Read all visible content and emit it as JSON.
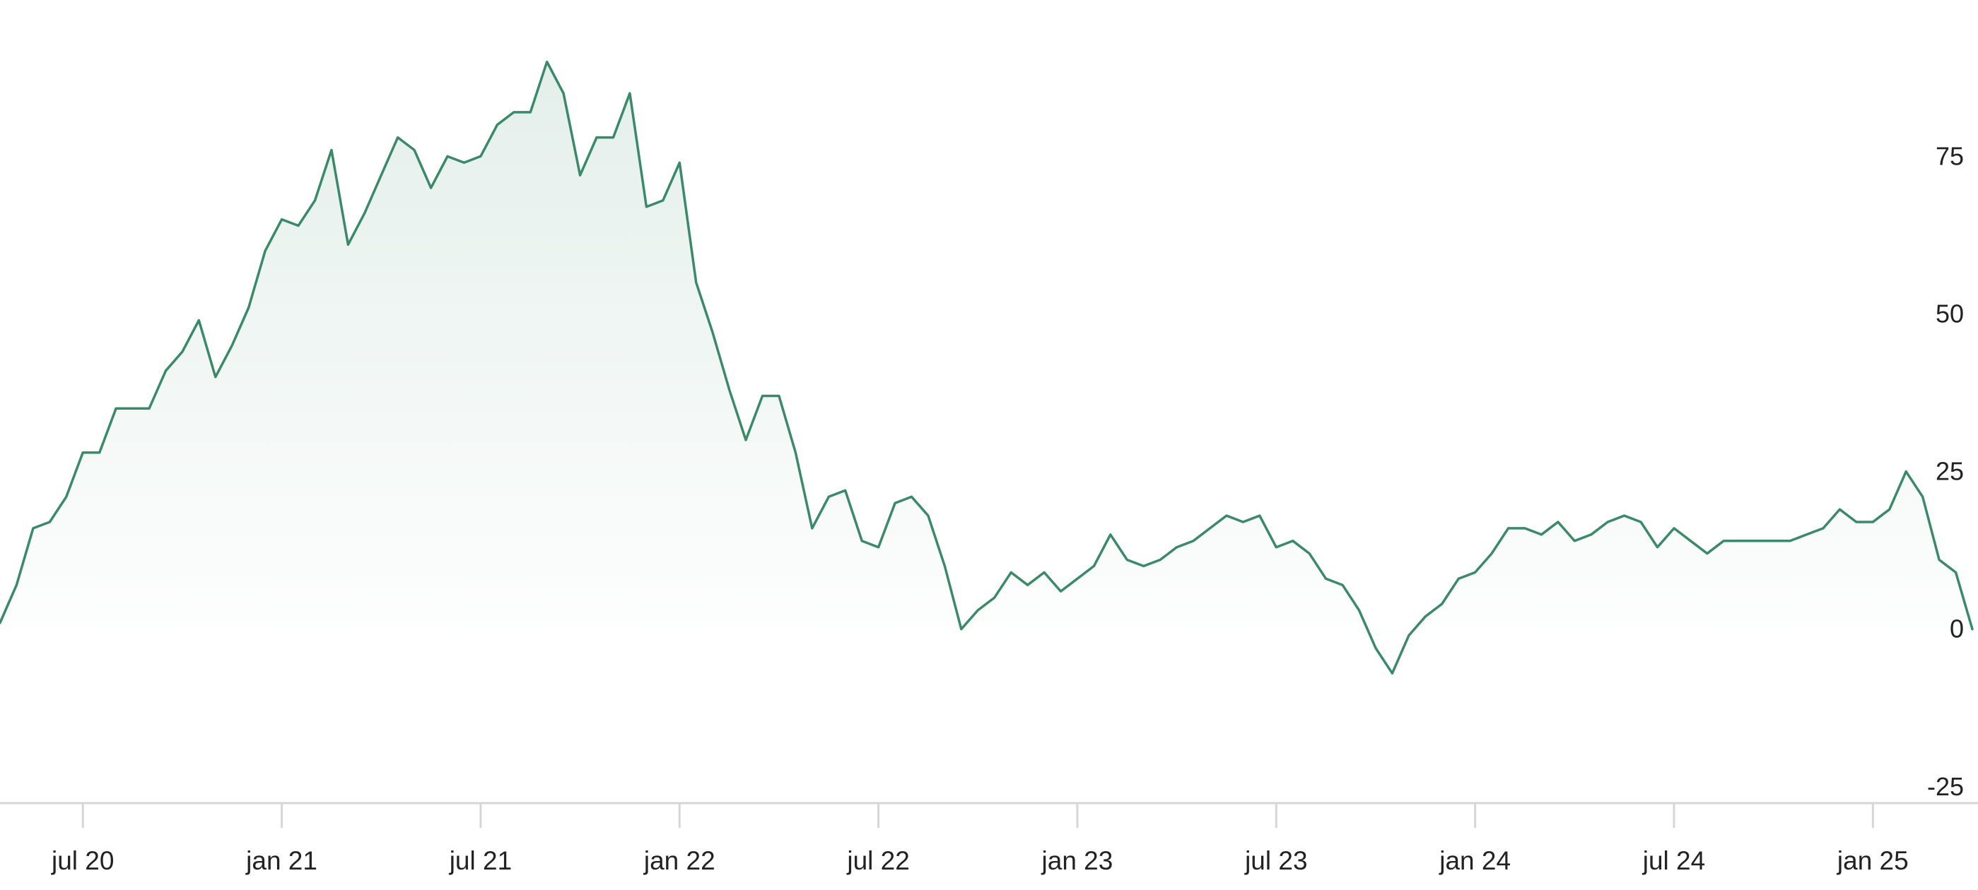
{
  "chart_data": {
    "type": "area",
    "categories": [
      null,
      null,
      null,
      null,
      null,
      "jul 20",
      null,
      null,
      null,
      null,
      null,
      null,
      null,
      null,
      null,
      null,
      null,
      "jan 21",
      null,
      null,
      null,
      null,
      null,
      null,
      null,
      null,
      null,
      null,
      null,
      "jul 21",
      null,
      null,
      null,
      null,
      null,
      null,
      null,
      null,
      null,
      null,
      null,
      "jan 22",
      null,
      null,
      null,
      null,
      null,
      null,
      null,
      null,
      null,
      null,
      null,
      "jul 22",
      null,
      null,
      null,
      null,
      null,
      null,
      null,
      null,
      null,
      null,
      null,
      "jan 23",
      null,
      null,
      null,
      null,
      null,
      null,
      null,
      null,
      null,
      null,
      null,
      "jul 23",
      null,
      null,
      null,
      null,
      null,
      null,
      null,
      null,
      null,
      null,
      null,
      "jan 24",
      null,
      null,
      null,
      null,
      null,
      null,
      null,
      null,
      null,
      null,
      null,
      "jul 24",
      null,
      null,
      null,
      null,
      null,
      null,
      null,
      null,
      null,
      null,
      null,
      "jan 25",
      null,
      null,
      null,
      null,
      null,
      null
    ],
    "series": [
      {
        "color": "#3a8a6a",
        "values": [
          1,
          7,
          16,
          17,
          21,
          28,
          28,
          35,
          35,
          35,
          41,
          44,
          49,
          40,
          45,
          51,
          60,
          65,
          64,
          68,
          76,
          61,
          66,
          72,
          78,
          76,
          70,
          75,
          74,
          75,
          80,
          82,
          82,
          90,
          85,
          72,
          78,
          78,
          85,
          67,
          68,
          74,
          55,
          47,
          38,
          30,
          37,
          37,
          28,
          16,
          21,
          22,
          14,
          13,
          20,
          21,
          18,
          10,
          0,
          3,
          5,
          9,
          7,
          9,
          6,
          8,
          10,
          15,
          11,
          10,
          11,
          13,
          14,
          16,
          18,
          17,
          18,
          13,
          14,
          12,
          8,
          7,
          3,
          -3,
          -7,
          -1,
          2,
          4,
          8,
          9,
          12,
          16,
          16,
          15,
          17,
          14,
          15,
          17,
          18,
          17,
          13,
          16,
          14,
          12,
          14,
          14,
          14,
          14,
          14,
          15,
          16,
          19,
          17,
          17,
          19,
          25,
          21,
          11,
          9,
          0
        ]
      }
    ],
    "ylim": [
      -27.6,
      99.8
    ],
    "yticks": [
      -25,
      0,
      25,
      50,
      75
    ],
    "grid": false
  }
}
